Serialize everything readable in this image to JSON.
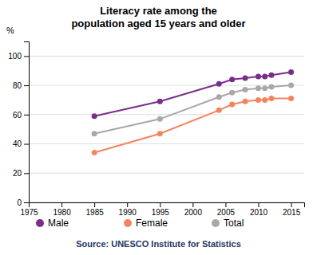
{
  "chart_data": {
    "type": "line",
    "title": "Literacy rate among the\npopulation aged 15 years and older",
    "y_label": "%",
    "annotations": [
      "Source: UNESCO Institute for Statistics"
    ],
    "x": [
      1985,
      1995,
      2004,
      2006,
      2008,
      2010,
      2011,
      2012,
      2015
    ],
    "series": [
      {
        "name": "Male",
        "color": "#7b2d8b",
        "values": [
          59,
          69,
          81,
          84,
          85,
          86,
          86,
          87,
          89
        ]
      },
      {
        "name": "Female",
        "color": "#f4845f",
        "values": [
          34,
          47,
          63,
          67,
          69,
          70,
          70,
          71,
          71
        ]
      },
      {
        "name": "Total",
        "color": "#a8a8a8",
        "values": [
          47,
          57,
          72,
          75,
          77,
          78,
          78,
          79,
          80
        ]
      }
    ],
    "xlim": [
      1975,
      2017
    ],
    "ylim": [
      0,
      110
    ],
    "xticks": [
      1975,
      1980,
      1985,
      1990,
      1995,
      2000,
      2005,
      2010,
      2015
    ],
    "yticks": [
      0,
      20,
      40,
      60,
      80,
      100
    ],
    "grid": true,
    "legend": "bottom",
    "marker": "circle"
  }
}
